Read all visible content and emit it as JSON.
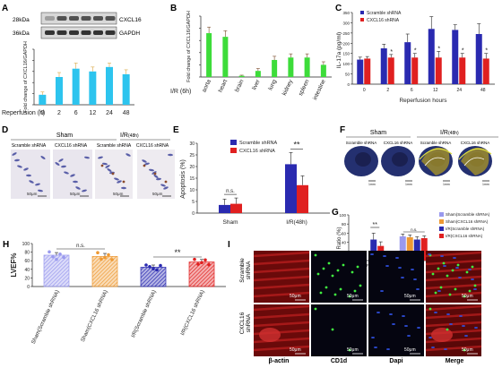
{
  "panels": {
    "A": "A",
    "B": "B",
    "C": "C",
    "D": "D",
    "E": "E",
    "F": "F",
    "G": "G",
    "H": "H",
    "I": "I"
  },
  "blot": {
    "kda1": "28kDa",
    "kda2": "36kDa",
    "protein1": "CXCL16",
    "protein2": "GAPDH"
  },
  "colors": {
    "cyan": "#2dc4ee",
    "green": "#3ddc3a",
    "blue": "#2a2ab0",
    "red": "#e02020",
    "purple": "#9999ee",
    "orange": "#ee9933"
  },
  "chart_data": [
    {
      "id": "A",
      "type": "bar",
      "ylabel": "Fold change of CXCL16/GAPDH",
      "xlabel": "Reperfusion (h)",
      "categories": [
        "0",
        "2",
        "6",
        "12",
        "24",
        "48"
      ],
      "values": [
        0.18,
        0.5,
        0.65,
        0.6,
        0.68,
        0.55
      ],
      "errors": [
        0.05,
        0.08,
        0.1,
        0.08,
        0.07,
        0.08
      ],
      "ylim": [
        0,
        1.0
      ]
    },
    {
      "id": "B",
      "type": "bar",
      "ylabel": "Fold change of CXCL16/GAPDH",
      "xlabel": "I/R (6h)",
      "categories": [
        "aorta",
        "heart",
        "brain",
        "liver",
        "lung",
        "kidney",
        "spleen",
        "intestine"
      ],
      "values": [
        0.72,
        0.66,
        0.02,
        0.1,
        0.28,
        0.32,
        0.32,
        0.2
      ],
      "errors": [
        0.1,
        0.1,
        0.01,
        0.04,
        0.06,
        0.06,
        0.06,
        0.05
      ],
      "ylim": [
        0,
        1.0
      ]
    },
    {
      "id": "C",
      "type": "bar",
      "ylabel": "IL-17a (pg/ml)",
      "xlabel": "Reperfusion hours",
      "ytick_labels": [
        "0",
        "50",
        "100",
        "150",
        "200",
        "250",
        "300",
        "350"
      ],
      "legend": [
        "Scramble shRNA",
        "CXCL16 shRNA"
      ],
      "categories": [
        "0",
        "2",
        "6",
        "12",
        "24",
        "48"
      ],
      "series": [
        {
          "name": "Scramble shRNA",
          "values": [
            120,
            175,
            205,
            270,
            265,
            245
          ],
          "errors": [
            12,
            20,
            40,
            60,
            25,
            50
          ]
        },
        {
          "name": "CXCL16 shRNA",
          "values": [
            125,
            130,
            130,
            130,
            130,
            125
          ],
          "errors": [
            10,
            15,
            20,
            30,
            20,
            25
          ]
        }
      ],
      "ylim": [
        0,
        350
      ],
      "annotations": [
        "*",
        "*",
        "*",
        "*",
        "*"
      ]
    },
    {
      "id": "E",
      "type": "bar",
      "ylabel": "Apoptosis (%)",
      "ytick_labels": [
        "0",
        "5",
        "10",
        "15",
        "20",
        "25",
        "30"
      ],
      "legend": [
        "Scramble shRNA",
        "CXCL16 shRNA"
      ],
      "categories": [
        "Sham",
        "I/R(48h)"
      ],
      "series": [
        {
          "name": "Scramble shRNA",
          "values": [
            3.5,
            21
          ],
          "errors": [
            2.5,
            5
          ]
        },
        {
          "name": "CXCL16 shRNA",
          "values": [
            4,
            12
          ],
          "errors": [
            2.5,
            4
          ]
        }
      ],
      "ylim": [
        0,
        30
      ],
      "annotations": [
        "n.s.",
        "**"
      ]
    },
    {
      "id": "G",
      "type": "bar",
      "ylabel": "Ratio (%)",
      "ytick_labels": [
        "0",
        "20",
        "40",
        "60",
        "80",
        "100"
      ],
      "legend": [
        "Sham(Scramble shRNA)",
        "Sham(CXCL16 shRNA)",
        "I/R(Scramble shRNA)",
        "I/R(CXCL16 shRNA)"
      ],
      "categories": [
        "INF/AAR",
        "AAR/LV"
      ],
      "series": [
        {
          "name": "Sham(Scramble shRNA)",
          "values": [
            0,
            53
          ],
          "errors": [
            0,
            5
          ]
        },
        {
          "name": "Sham(CXCL16 shRNA)",
          "values": [
            0,
            51
          ],
          "errors": [
            0,
            5
          ]
        },
        {
          "name": "I/R(Scramble shRNA)",
          "values": [
            46,
            46
          ],
          "errors": [
            14,
            6
          ]
        },
        {
          "name": "I/R(CXCL16 shRNA)",
          "values": [
            32,
            49
          ],
          "errors": [
            9,
            5
          ]
        }
      ],
      "ylim": [
        0,
        100
      ],
      "annotations": [
        "n.s.",
        "**",
        "n.s."
      ]
    },
    {
      "id": "H",
      "type": "bar",
      "ylabel": "LVEF%",
      "ytick_labels": [
        "0",
        "20",
        "40",
        "60",
        "80",
        "100"
      ],
      "categories": [
        "Sham(Scramble shRNA)",
        "Sham(CXCL16 shRNA)",
        "I/R(Scramble shRNA)",
        "I/R(CXCL16 shRNA)"
      ],
      "values": [
        73,
        70,
        45,
        57
      ],
      "errors": [
        6,
        7,
        5,
        6
      ],
      "ylim": [
        0,
        100
      ],
      "annotations": [
        "n.s.",
        "**"
      ]
    }
  ],
  "panelD": {
    "group1": "Sham",
    "group2": "I/R",
    "group2_suffix": "(48h)",
    "col1": "Scramble shRNA",
    "col2": "CXCL16 shRNA",
    "col3": "Scramble shRNA",
    "col4": "CXCL16 shRNA",
    "scale1": "50μm",
    "scale2": "50μm",
    "scale3": "50μm",
    "scale4": "50μm"
  },
  "panelF": {
    "group1": "Sham",
    "group2": "I/R",
    "group2_suffix": "(48h)",
    "col1": "Scramble shRNA",
    "col2": "CXCL16 shRNA",
    "col3": "Scramble shRNA",
    "col4": "CXCL16 shRNA",
    "scale": "1mm"
  },
  "panelI": {
    "row1a": "Scramble",
    "row1b": "shRNA",
    "row2a": "CXCL16",
    "row2b": "shRNA",
    "col1": "β-actin",
    "col2": "CD1d",
    "col3": "Dapi",
    "col4": "Merge",
    "scale": "50μm"
  }
}
